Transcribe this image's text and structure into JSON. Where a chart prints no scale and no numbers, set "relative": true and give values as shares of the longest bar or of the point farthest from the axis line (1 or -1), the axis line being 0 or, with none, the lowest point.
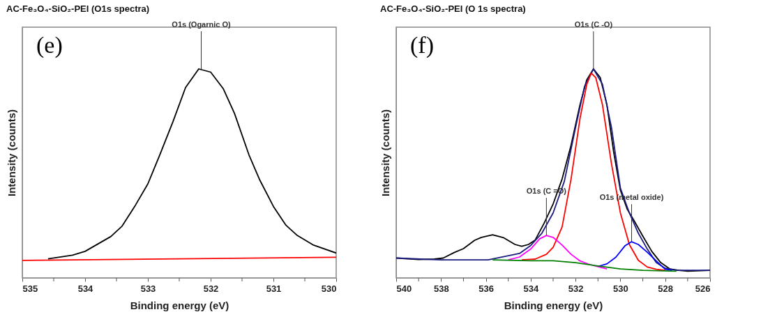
{
  "chart_data": [
    {
      "type": "line",
      "relative": true,
      "title": "AC-Fe₃O₄-SiO₂-PEI (O1s spectra)",
      "xlabel": "Binding energy (eV)",
      "ylabel": "Intensity (counts)",
      "xlim": [
        535,
        530
      ],
      "xticks": [
        535,
        {
          "value": 534.5,
          "label": null
        },
        534,
        {
          "value": 533.5,
          "label": null
        },
        533,
        {
          "value": 532.5,
          "label": null
        },
        532,
        {
          "value": 531.5,
          "label": null
        },
        531,
        {
          "value": 530.5,
          "label": null
        },
        530
      ],
      "grid": false,
      "legend": false,
      "line_style": "solid",
      "annotations": [
        "(e)",
        {
          "text": "O1s (Ogarnic O)",
          "x": 532.15,
          "y": 1.0
        }
      ],
      "series": [
        {
          "color": "#000000",
          "x": [
            534.59,
            534.2,
            534.0,
            533.59,
            533.41,
            533.2,
            533.0,
            532.81,
            532.6,
            532.4,
            532.19,
            532.0,
            531.8,
            531.62,
            531.39,
            531.22,
            531.0,
            530.8,
            530.62,
            530.37,
            530.0
          ],
          "values": [
            0.091,
            0.109,
            0.127,
            0.198,
            0.248,
            0.347,
            0.45,
            0.589,
            0.748,
            0.911,
            1.0,
            0.985,
            0.906,
            0.787,
            0.589,
            0.47,
            0.342,
            0.252,
            0.203,
            0.158,
            0.119
          ]
        },
        {
          "color": "#ff0000",
          "x": [
            535,
            532.5,
            530
          ],
          "values": [
            0.084,
            0.091,
            0.099
          ]
        }
      ]
    },
    {
      "type": "line",
      "relative": true,
      "title": "AC-Fe₃O₄-SiO₂-PEI (O 1s spectra)",
      "xlabel": "Binding energy (eV)",
      "ylabel": "Intensity (counts)",
      "xlim": [
        540,
        526
      ],
      "xticks": [
        540,
        {
          "value": 539,
          "label": null
        },
        538,
        {
          "value": 537,
          "label": null
        },
        536,
        {
          "value": 535,
          "label": null
        },
        534,
        {
          "value": 533,
          "label": null
        },
        532,
        {
          "value": 531,
          "label": null
        },
        530,
        {
          "value": 529,
          "label": null
        },
        528,
        {
          "value": 527,
          "label": null
        },
        526
      ],
      "grid": false,
      "legend": false,
      "line_style": "solid",
      "annotations": [
        "(f)",
        {
          "text": "O1s (C -O)",
          "x": 531.2,
          "y": 1.0
        },
        {
          "text": "O1s (C =O)",
          "x": 533.3,
          "y": 0.203
        },
        {
          "text": "O1s (metal oxide)",
          "x": 529.5,
          "y": 0.173
        }
      ],
      "series": [
        {
          "color": "#000000",
          "x": [
            540,
            539,
            538.3,
            537.9,
            537.4,
            537,
            536.5,
            536.2,
            535.7,
            535.2,
            534.7,
            534.4,
            534.1,
            533.8,
            533.4,
            533.0,
            532.6,
            532.2,
            531.8,
            531.5,
            531.2,
            530.9,
            530.6,
            530.3,
            530.0,
            529.7,
            529.4,
            529.0,
            528.6,
            528.2,
            527.8,
            527.4,
            527,
            526
          ],
          "values": [
            0.095,
            0.088,
            0.09,
            0.095,
            0.122,
            0.14,
            0.18,
            0.194,
            0.206,
            0.192,
            0.16,
            0.151,
            0.16,
            0.181,
            0.262,
            0.354,
            0.473,
            0.635,
            0.829,
            0.948,
            1.0,
            0.959,
            0.829,
            0.603,
            0.42,
            0.33,
            0.276,
            0.2,
            0.127,
            0.073,
            0.043,
            0.036,
            0.032,
            0.036
          ]
        },
        {
          "color": "#1a1a80",
          "x": [
            540,
            538,
            535.9,
            534.5,
            534,
            533.5,
            533,
            532.5,
            532,
            531.6,
            531.2,
            530.8,
            530.4,
            530,
            529.6,
            529.2,
            528.8,
            528.4,
            528,
            527.5,
            526
          ],
          "values": [
            0.095,
            0.086,
            0.086,
            0.117,
            0.155,
            0.214,
            0.311,
            0.462,
            0.72,
            0.916,
            1.0,
            0.927,
            0.721,
            0.43,
            0.311,
            0.214,
            0.138,
            0.073,
            0.046,
            0.036,
            0.036
          ]
        },
        {
          "color": "#ff0000",
          "x": [
            534.4,
            533.8,
            533.3,
            533,
            532.6,
            532.2,
            531.8,
            531.5,
            531.3,
            531.1,
            530.8,
            530.4,
            530,
            529.6,
            529.2,
            528.8,
            528.4,
            528
          ],
          "values": [
            0.086,
            0.09,
            0.113,
            0.146,
            0.244,
            0.473,
            0.764,
            0.926,
            0.98,
            0.959,
            0.829,
            0.548,
            0.311,
            0.16,
            0.084,
            0.052,
            0.041,
            0.036
          ]
        },
        {
          "color": "#ff00ff",
          "x": [
            535,
            534.5,
            534,
            533.6,
            533.3,
            533,
            532.6,
            532.2,
            531.8,
            531.4,
            531,
            530.6
          ],
          "values": [
            0.086,
            0.1,
            0.138,
            0.187,
            0.203,
            0.194,
            0.157,
            0.113,
            0.081,
            0.065,
            0.054,
            0.043
          ]
        },
        {
          "color": "#0000ff",
          "x": [
            531,
            530.6,
            530.2,
            529.8,
            529.5,
            529.2,
            528.8,
            528.4,
            528,
            527.7
          ],
          "values": [
            0.055,
            0.067,
            0.099,
            0.153,
            0.173,
            0.16,
            0.123,
            0.081,
            0.041,
            0.036
          ]
        },
        {
          "color": "#008000",
          "x": [
            535.7,
            534,
            533,
            532,
            531,
            530,
            529,
            527.5
          ],
          "values": [
            0.086,
            0.082,
            0.082,
            0.073,
            0.057,
            0.043,
            0.036,
            0.032
          ]
        }
      ]
    }
  ]
}
